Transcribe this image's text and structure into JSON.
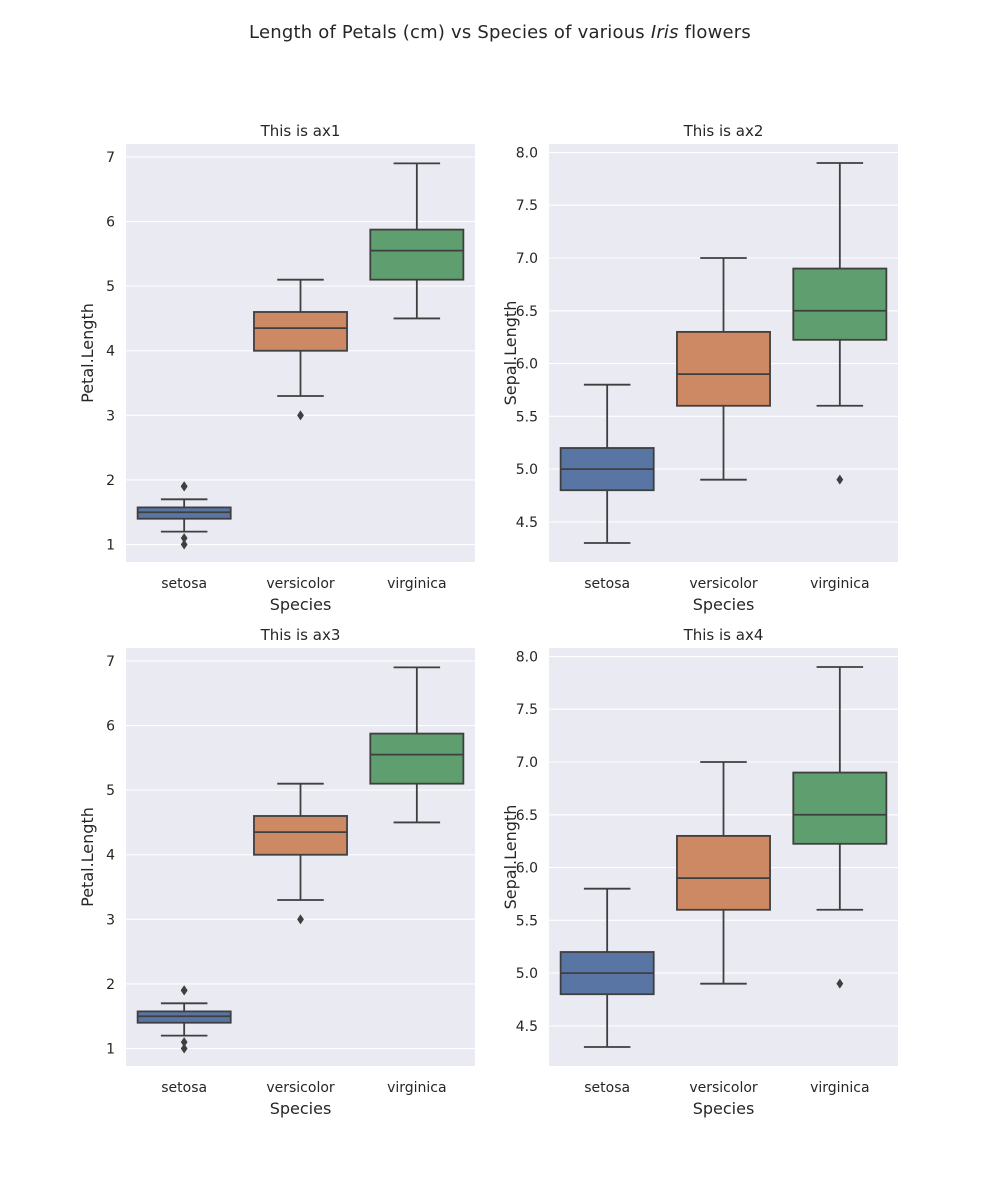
{
  "figure": {
    "title_before": "Length of Petals (cm) vs Species of various ",
    "title_italic": "Iris",
    "title_after": " flowers"
  },
  "colors": {
    "setosa": "#5875a4",
    "versicolor": "#cc8963",
    "virginica": "#5f9e6e",
    "axes_background": "#eaeaf2",
    "grid": "#ffffff",
    "line": "#3f3f3f"
  },
  "chart_data": [
    {
      "type": "box",
      "title": "This is ax1",
      "xlabel": "Species",
      "ylabel": "Petal.Length",
      "categories": [
        "setosa",
        "versicolor",
        "virginica"
      ],
      "ylim": [
        0.73,
        7.2
      ],
      "yticks": [
        1,
        2,
        3,
        4,
        5,
        6,
        7
      ],
      "ytick_labels": [
        "1",
        "2",
        "3",
        "4",
        "5",
        "6",
        "7"
      ],
      "boxes": [
        {
          "name": "setosa",
          "whisker_low": 1.2,
          "q1": 1.4,
          "median": 1.5,
          "q3": 1.575,
          "whisker_high": 1.7,
          "outliers": [
            1.0,
            1.1,
            1.9,
            1.9
          ]
        },
        {
          "name": "versicolor",
          "whisker_low": 3.3,
          "q1": 4.0,
          "median": 4.35,
          "q3": 4.6,
          "whisker_high": 5.1,
          "outliers": [
            3.0
          ]
        },
        {
          "name": "virginica",
          "whisker_low": 4.5,
          "q1": 5.1,
          "median": 5.55,
          "q3": 5.875,
          "whisker_high": 6.9,
          "outliers": []
        }
      ]
    },
    {
      "type": "box",
      "title": "This is ax2",
      "xlabel": "Species",
      "ylabel": "Sepal.Length",
      "categories": [
        "setosa",
        "versicolor",
        "virginica"
      ],
      "ylim": [
        4.12,
        8.08
      ],
      "yticks": [
        4.5,
        5.0,
        5.5,
        6.0,
        6.5,
        7.0,
        7.5,
        8.0
      ],
      "ytick_labels": [
        "4.5",
        "5.0",
        "5.5",
        "6.0",
        "6.5",
        "7.0",
        "7.5",
        "8.0"
      ],
      "boxes": [
        {
          "name": "setosa",
          "whisker_low": 4.3,
          "q1": 4.8,
          "median": 5.0,
          "q3": 5.2,
          "whisker_high": 5.8,
          "outliers": []
        },
        {
          "name": "versicolor",
          "whisker_low": 4.9,
          "q1": 5.6,
          "median": 5.9,
          "q3": 6.3,
          "whisker_high": 7.0,
          "outliers": []
        },
        {
          "name": "virginica",
          "whisker_low": 5.6,
          "q1": 6.225,
          "median": 6.5,
          "q3": 6.9,
          "whisker_high": 7.9,
          "outliers": [
            4.9
          ]
        }
      ]
    },
    {
      "type": "box",
      "title": "This is ax3",
      "xlabel": "Species",
      "ylabel": "Petal.Length",
      "categories": [
        "setosa",
        "versicolor",
        "virginica"
      ],
      "ylim": [
        0.73,
        7.2
      ],
      "yticks": [
        1,
        2,
        3,
        4,
        5,
        6,
        7
      ],
      "ytick_labels": [
        "1",
        "2",
        "3",
        "4",
        "5",
        "6",
        "7"
      ],
      "boxes": [
        {
          "name": "setosa",
          "whisker_low": 1.2,
          "q1": 1.4,
          "median": 1.5,
          "q3": 1.575,
          "whisker_high": 1.7,
          "outliers": [
            1.0,
            1.1,
            1.9,
            1.9
          ]
        },
        {
          "name": "versicolor",
          "whisker_low": 3.3,
          "q1": 4.0,
          "median": 4.35,
          "q3": 4.6,
          "whisker_high": 5.1,
          "outliers": [
            3.0
          ]
        },
        {
          "name": "virginica",
          "whisker_low": 4.5,
          "q1": 5.1,
          "median": 5.55,
          "q3": 5.875,
          "whisker_high": 6.9,
          "outliers": []
        }
      ]
    },
    {
      "type": "box",
      "title": "This is ax4",
      "xlabel": "Species",
      "ylabel": "Sepal.Length",
      "categories": [
        "setosa",
        "versicolor",
        "virginica"
      ],
      "ylim": [
        4.12,
        8.08
      ],
      "yticks": [
        4.5,
        5.0,
        5.5,
        6.0,
        6.5,
        7.0,
        7.5,
        8.0
      ],
      "ytick_labels": [
        "4.5",
        "5.0",
        "5.5",
        "6.0",
        "6.5",
        "7.0",
        "7.5",
        "8.0"
      ],
      "boxes": [
        {
          "name": "setosa",
          "whisker_low": 4.3,
          "q1": 4.8,
          "median": 5.0,
          "q3": 5.2,
          "whisker_high": 5.8,
          "outliers": []
        },
        {
          "name": "versicolor",
          "whisker_low": 4.9,
          "q1": 5.6,
          "median": 5.9,
          "q3": 6.3,
          "whisker_high": 7.0,
          "outliers": []
        },
        {
          "name": "virginica",
          "whisker_low": 5.6,
          "q1": 6.225,
          "median": 6.5,
          "q3": 6.9,
          "whisker_high": 7.9,
          "outliers": [
            4.9
          ]
        }
      ]
    }
  ]
}
